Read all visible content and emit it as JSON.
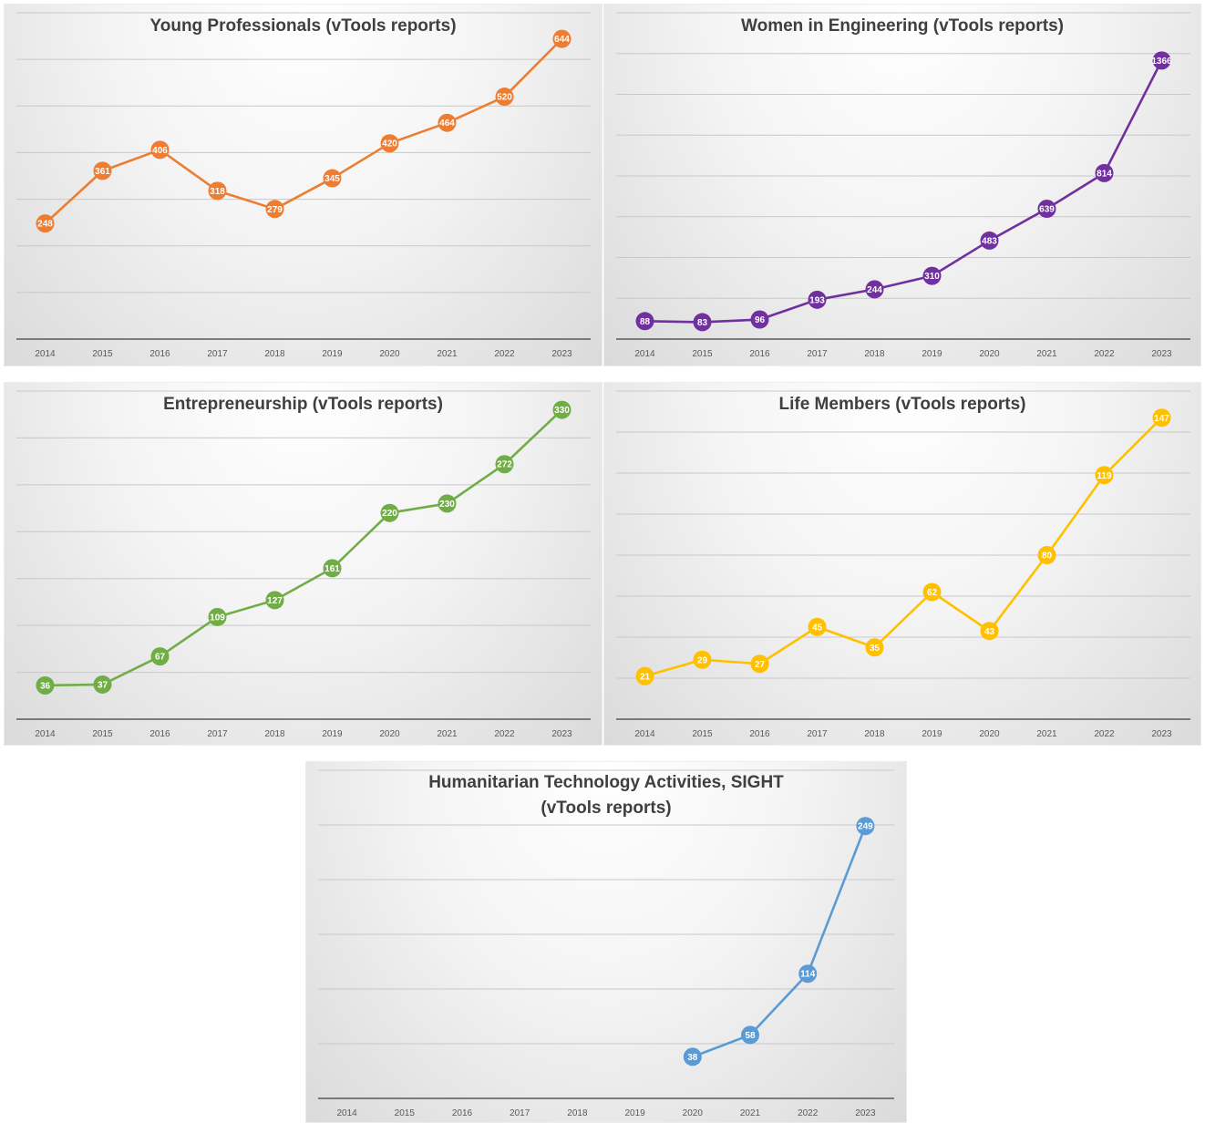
{
  "chart_data": [
    {
      "type": "line",
      "title": "Young Professionals (vTools reports)",
      "categories": [
        "2014",
        "2015",
        "2016",
        "2017",
        "2018",
        "2019",
        "2020",
        "2021",
        "2022",
        "2023"
      ],
      "series": [
        {
          "values": [
            248,
            361,
            406,
            318,
            279,
            345,
            420,
            464,
            520,
            644
          ]
        }
      ],
      "ylim": [
        0,
        700
      ],
      "grid": true,
      "y_tick_labels_shown": false,
      "color": "#ED7D31"
    },
    {
      "type": "line",
      "title": "Women in Engineering (vTools reports)",
      "categories": [
        "2014",
        "2015",
        "2016",
        "2017",
        "2018",
        "2019",
        "2020",
        "2021",
        "2022",
        "2023"
      ],
      "series": [
        {
          "values": [
            88,
            83,
            96,
            193,
            244,
            310,
            483,
            639,
            814,
            1366
          ]
        }
      ],
      "ylim": [
        0,
        1600
      ],
      "grid": true,
      "y_tick_labels_shown": false,
      "color": "#7030A0"
    },
    {
      "type": "line",
      "title": "Entrepreneurship (vTools reports)",
      "categories": [
        "2014",
        "2015",
        "2016",
        "2017",
        "2018",
        "2019",
        "2020",
        "2021",
        "2022",
        "2023"
      ],
      "series": [
        {
          "values": [
            36,
            37,
            67,
            109,
            127,
            161,
            220,
            230,
            272,
            330
          ]
        }
      ],
      "ylim": [
        0,
        350
      ],
      "grid": true,
      "y_tick_labels_shown": false,
      "color": "#70AD47"
    },
    {
      "type": "line",
      "title": "Life Members (vTools reports)",
      "categories": [
        "2014",
        "2015",
        "2016",
        "2017",
        "2018",
        "2019",
        "2020",
        "2021",
        "2022",
        "2023"
      ],
      "series": [
        {
          "values": [
            21,
            29,
            27,
            45,
            35,
            62,
            43,
            80,
            119,
            147
          ]
        }
      ],
      "ylim": [
        0,
        160
      ],
      "grid": true,
      "y_tick_labels_shown": false,
      "color": "#FFC000"
    },
    {
      "type": "line",
      "title": "Humanitarian Technology Activities, SIGHT (vTools reports)",
      "title_lines": [
        "Humanitarian Technology Activities, SIGHT",
        "(vTools reports)"
      ],
      "categories": [
        "2014",
        "2015",
        "2016",
        "2017",
        "2018",
        "2019",
        "2020",
        "2021",
        "2022",
        "2023"
      ],
      "series": [
        {
          "values": [
            null,
            null,
            null,
            null,
            null,
            null,
            38,
            58,
            114,
            249
          ]
        }
      ],
      "ylim": [
        0,
        300
      ],
      "grid": true,
      "y_tick_labels_shown": false,
      "color": "#5B9BD5"
    }
  ]
}
